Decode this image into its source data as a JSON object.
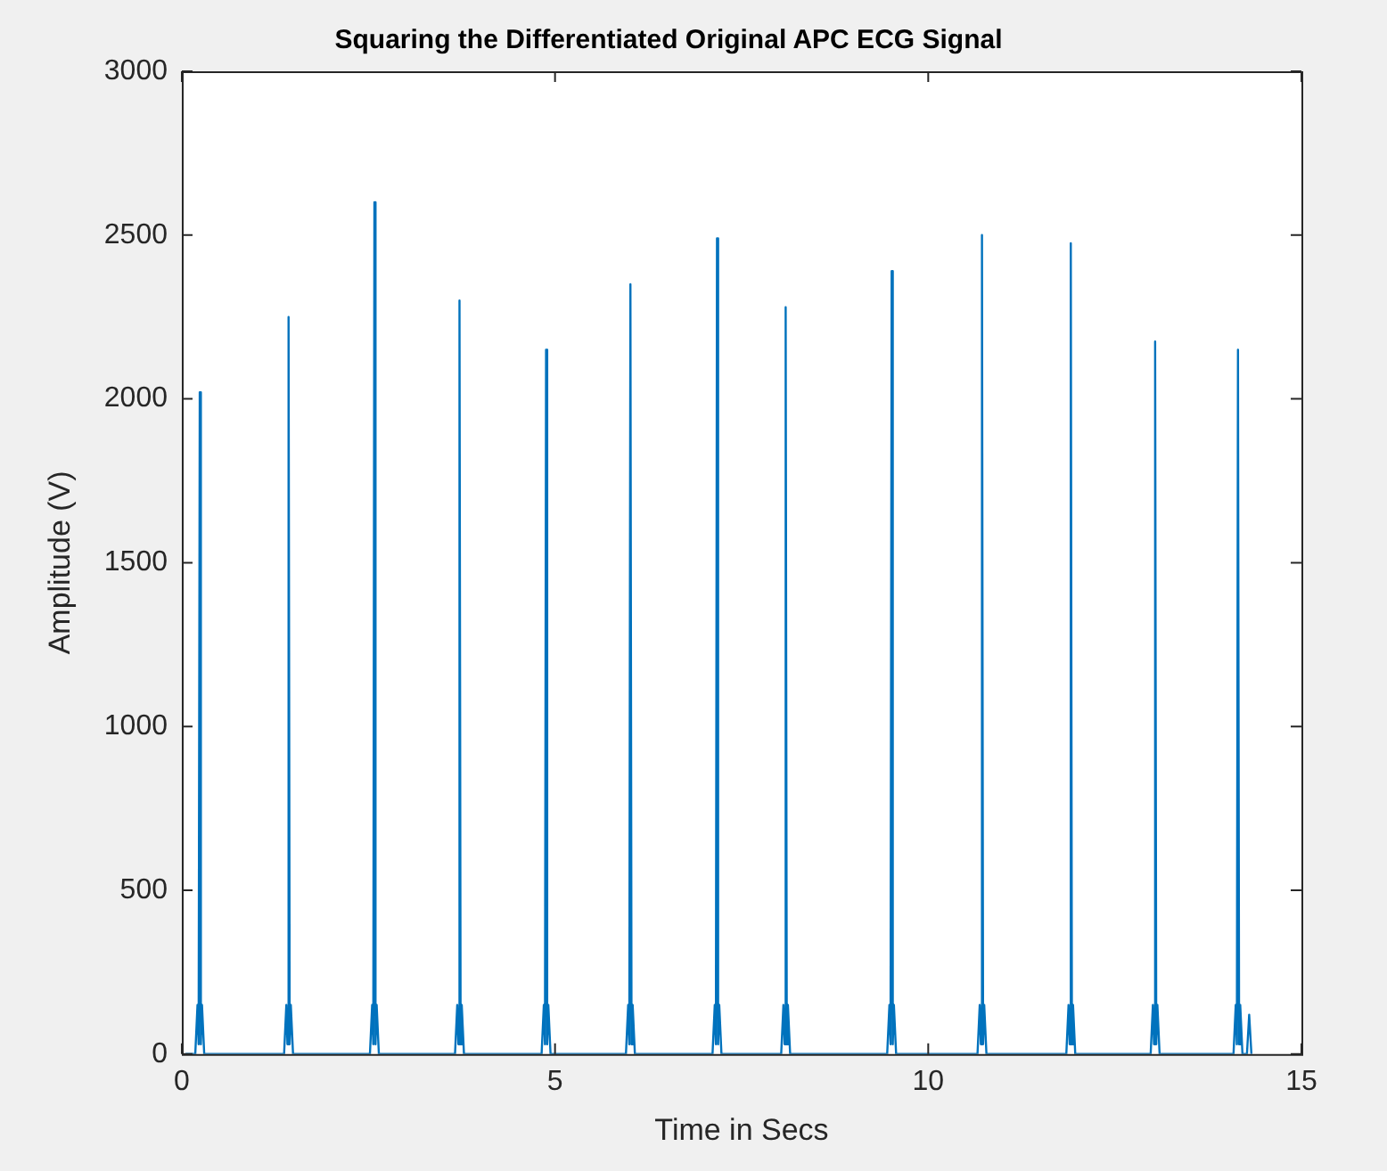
{
  "chart_data": {
    "type": "line",
    "title": "Squaring the Differentiated Original APC ECG Signal",
    "xlabel": "Time in Secs",
    "ylabel": "Amplitude (V)",
    "xlim": [
      0,
      15
    ],
    "xticks": [
      0,
      5,
      10,
      15
    ],
    "ylim": [
      0,
      3000
    ],
    "yticks": [
      0,
      500,
      1000,
      1500,
      2000,
      2500,
      3000
    ],
    "grid": false,
    "legend": false,
    "marker": "none",
    "line_style": "solid",
    "series": [
      {
        "color": "#0072bd",
        "x": [
          0.05,
          0.18,
          0.21,
          0.225,
          0.24,
          0.255,
          0.27,
          0.3,
          1.37,
          1.4,
          1.415,
          1.43,
          1.445,
          1.46,
          1.49,
          2.52,
          2.55,
          2.565,
          2.58,
          2.595,
          2.61,
          2.64,
          3.66,
          3.69,
          3.705,
          3.72,
          3.735,
          3.75,
          3.78,
          4.82,
          4.85,
          4.865,
          4.88,
          4.895,
          4.91,
          4.94,
          5.95,
          5.98,
          5.995,
          6.01,
          6.025,
          6.04,
          6.07,
          7.11,
          7.14,
          7.155,
          7.17,
          7.185,
          7.2,
          7.23,
          8.03,
          8.06,
          8.075,
          8.09,
          8.105,
          8.12,
          8.15,
          9.45,
          9.48,
          9.495,
          9.51,
          9.525,
          9.54,
          9.57,
          10.66,
          10.69,
          10.705,
          10.72,
          10.735,
          10.75,
          10.78,
          11.85,
          11.88,
          11.895,
          11.91,
          11.925,
          11.94,
          11.97,
          12.98,
          13.01,
          13.025,
          13.04,
          13.055,
          13.07,
          13.1,
          14.09,
          14.12,
          14.135,
          14.15,
          14.165,
          14.18,
          14.21,
          14.27,
          14.3,
          14.33
        ],
        "values": [
          0,
          0,
          150,
          30,
          2020,
          30,
          150,
          0,
          0,
          150,
          30,
          2250,
          30,
          150,
          0,
          0,
          150,
          30,
          2600,
          30,
          150,
          0,
          0,
          150,
          30,
          2300,
          30,
          150,
          0,
          0,
          150,
          30,
          2150,
          30,
          150,
          0,
          0,
          150,
          30,
          2350,
          30,
          150,
          0,
          0,
          150,
          30,
          2490,
          30,
          150,
          0,
          0,
          150,
          30,
          2280,
          30,
          150,
          0,
          0,
          150,
          30,
          2390,
          30,
          150,
          0,
          0,
          150,
          30,
          2500,
          30,
          150,
          0,
          0,
          150,
          30,
          2475,
          30,
          150,
          0,
          0,
          150,
          30,
          2175,
          30,
          150,
          0,
          0,
          150,
          30,
          2150,
          30,
          150,
          0,
          0,
          120,
          0
        ]
      }
    ]
  }
}
